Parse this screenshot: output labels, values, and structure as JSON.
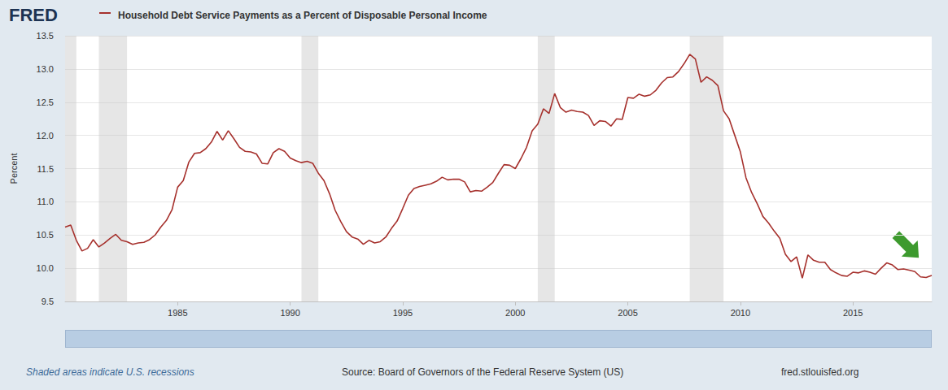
{
  "chart_data": {
    "type": "line",
    "logo": "FRED",
    "title": "Household Debt Service Payments as a Percent of Disposable Personal Income",
    "y_label": "Percent",
    "note": "Shaded areas indicate U.S. recessions",
    "source": "Source: Board of Governors of the Federal Reserve System (US)",
    "website": "fred.stlouisfed.org",
    "color": "#a6312d",
    "grid": true,
    "xlim": [
      1980,
      2018.5
    ],
    "xticks": [
      1985,
      1990,
      1995,
      2000,
      2005,
      2010,
      2015
    ],
    "ylim": [
      9.5,
      13.5
    ],
    "yticks": [
      9.5,
      {
        "value": 10,
        "label": "10.0"
      },
      10.5,
      {
        "value": 11,
        "label": "11.0"
      },
      11.5,
      {
        "value": 12,
        "label": "12.0"
      },
      12.5,
      {
        "value": 13,
        "label": "13.0"
      },
      13.5
    ],
    "recessions": [
      [
        1980,
        1980.5
      ],
      [
        1981.5,
        1982.75
      ],
      [
        1990.5,
        1991.25
      ],
      [
        2001,
        2001.75
      ],
      [
        2007.75,
        2009.25
      ]
    ],
    "x": [
      1980,
      1980.25,
      1980.5,
      1980.75,
      1981,
      1981.25,
      1981.5,
      1981.75,
      1982,
      1982.25,
      1982.5,
      1982.75,
      1983,
      1983.25,
      1983.5,
      1983.75,
      1984,
      1984.25,
      1984.5,
      1984.75,
      1985,
      1985.25,
      1985.5,
      1985.75,
      1986,
      1986.25,
      1986.5,
      1986.75,
      1987,
      1987.25,
      1987.5,
      1987.75,
      1988,
      1988.25,
      1988.5,
      1988.75,
      1989,
      1989.25,
      1989.5,
      1989.75,
      1990,
      1990.25,
      1990.5,
      1990.75,
      1991,
      1991.25,
      1991.5,
      1991.75,
      1992,
      1992.25,
      1992.5,
      1992.75,
      1993,
      1993.25,
      1993.5,
      1993.75,
      1994,
      1994.25,
      1994.5,
      1994.75,
      1995,
      1995.25,
      1995.5,
      1995.75,
      1996,
      1996.25,
      1996.5,
      1996.75,
      1997,
      1997.25,
      1997.5,
      1997.75,
      1998,
      1998.25,
      1998.5,
      1998.75,
      1999,
      1999.25,
      1999.5,
      1999.75,
      2000,
      2000.25,
      2000.5,
      2000.75,
      2001,
      2001.25,
      2001.5,
      2001.75,
      2002,
      2002.25,
      2002.5,
      2002.75,
      2003,
      2003.25,
      2003.5,
      2003.75,
      2004,
      2004.25,
      2004.5,
      2004.75,
      2005,
      2005.25,
      2005.5,
      2005.75,
      2006,
      2006.25,
      2006.5,
      2006.75,
      2007,
      2007.25,
      2007.5,
      2007.75,
      2008,
      2008.25,
      2008.5,
      2008.75,
      2009,
      2009.25,
      2009.5,
      2009.75,
      2010,
      2010.25,
      2010.5,
      2010.75,
      2011,
      2011.25,
      2011.5,
      2011.75,
      2012,
      2012.25,
      2012.5,
      2012.75,
      2013,
      2013.25,
      2013.5,
      2013.75,
      2014,
      2014.25,
      2014.5,
      2014.75,
      2015,
      2015.25,
      2015.5,
      2015.75,
      2016,
      2016.25,
      2016.5,
      2016.75,
      2017,
      2017.25,
      2017.5,
      2017.75,
      2018,
      2018.25,
      2018.5
    ],
    "values": [
      10.62,
      10.65,
      10.42,
      10.26,
      10.3,
      10.43,
      10.32,
      10.38,
      10.45,
      10.51,
      10.42,
      10.4,
      10.36,
      10.38,
      10.39,
      10.43,
      10.5,
      10.62,
      10.72,
      10.88,
      11.22,
      11.32,
      11.6,
      11.73,
      11.74,
      11.8,
      11.9,
      12.06,
      11.93,
      12.07,
      11.95,
      11.82,
      11.76,
      11.75,
      11.72,
      11.58,
      11.57,
      11.74,
      11.8,
      11.76,
      11.66,
      11.62,
      11.59,
      11.61,
      11.58,
      11.43,
      11.32,
      11.12,
      10.87,
      10.7,
      10.55,
      10.47,
      10.44,
      10.36,
      10.42,
      10.38,
      10.4,
      10.47,
      10.6,
      10.71,
      10.9,
      11.1,
      11.2,
      11.23,
      11.25,
      11.27,
      11.31,
      11.37,
      11.33,
      11.34,
      11.34,
      11.3,
      11.15,
      11.17,
      11.16,
      11.22,
      11.29,
      11.43,
      11.56,
      11.55,
      11.5,
      11.65,
      11.82,
      12.07,
      12.17,
      12.4,
      12.33,
      12.63,
      12.42,
      12.35,
      12.38,
      12.36,
      12.35,
      12.3,
      12.15,
      12.22,
      12.21,
      12.14,
      12.25,
      12.24,
      12.57,
      12.56,
      12.62,
      12.59,
      12.61,
      12.68,
      12.79,
      12.87,
      12.88,
      12.96,
      13.08,
      13.22,
      13.15,
      12.8,
      12.88,
      12.83,
      12.75,
      12.37,
      12.25,
      12.0,
      11.75,
      11.36,
      11.14,
      10.97,
      10.78,
      10.68,
      10.56,
      10.45,
      10.21,
      10.1,
      10.17,
      9.85,
      10.2,
      10.12,
      10.09,
      10.09,
      9.98,
      9.93,
      9.89,
      9.88,
      9.94,
      9.93,
      9.96,
      9.94,
      9.91,
      10.0,
      10.08,
      10.05,
      9.98,
      9.99,
      9.97,
      9.95,
      9.87,
      9.86,
      9.89
    ]
  }
}
